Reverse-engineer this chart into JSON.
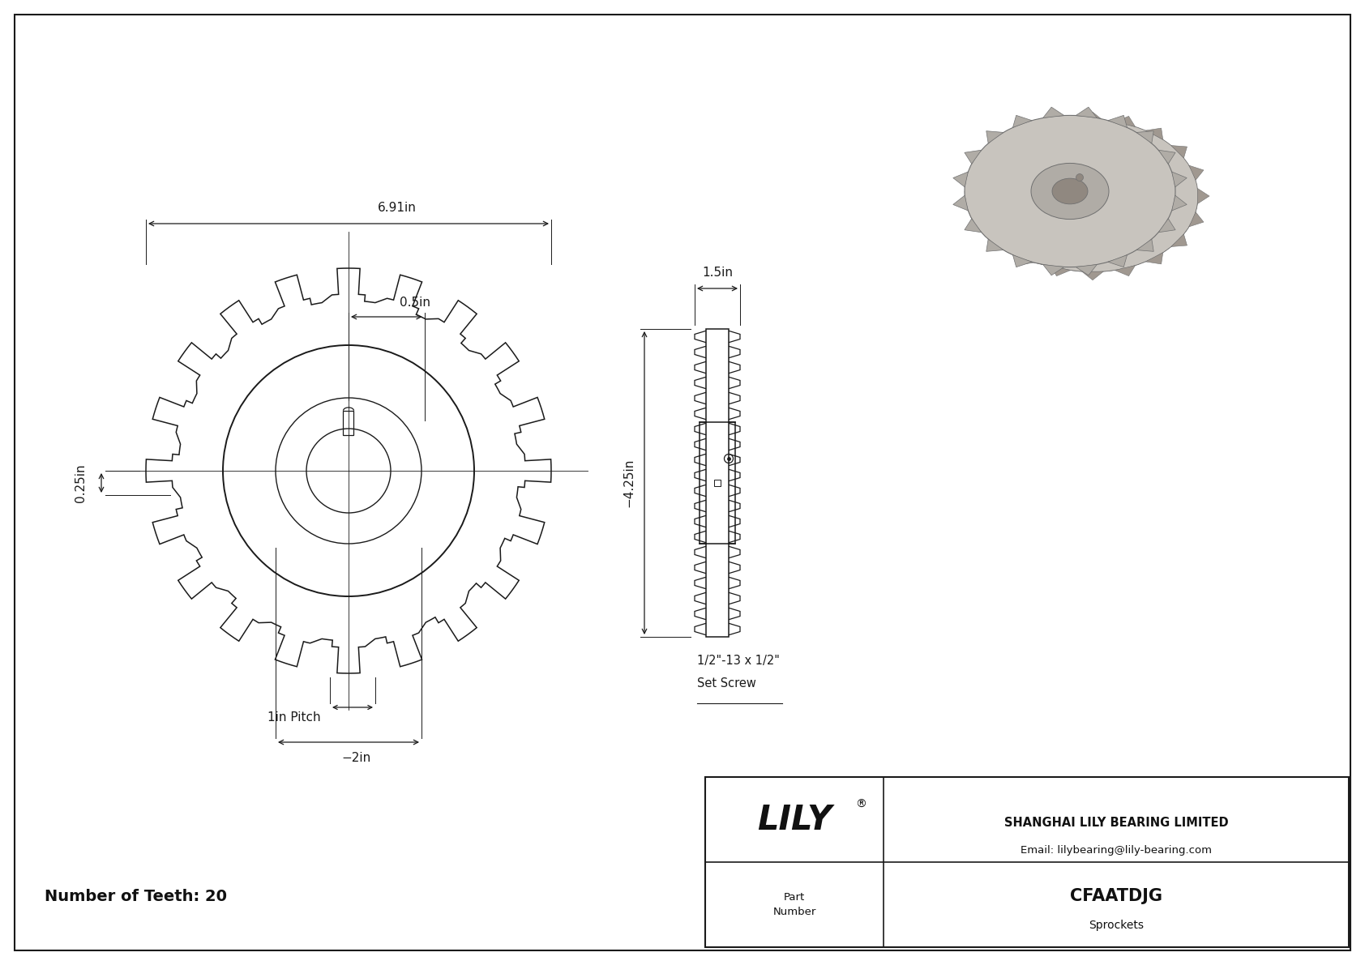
{
  "line_color": "#1a1a1a",
  "dim_color": "#1a1a1a",
  "bg_color": "#ffffff",
  "num_teeth": 20,
  "company_name": "SHANGHAI LILY BEARING LIMITED",
  "company_email": "Email: lilybearing@lily-bearing.com",
  "part_number": "CFAATDJG",
  "part_category": "Sprockets",
  "number_of_teeth_label": "Number of Teeth: 20",
  "dim_691": "6.91in",
  "dim_05": "0.5in",
  "dim_025": "0.25in",
  "dim_15": "1.5in",
  "dim_425": "−4.25in",
  "dim_1pitch": "1in Pitch",
  "dim_2bore": "−2in",
  "set_screw_line1": "1/2\"-13 x 1/2\"",
  "set_screw_line2": "Set Screw"
}
